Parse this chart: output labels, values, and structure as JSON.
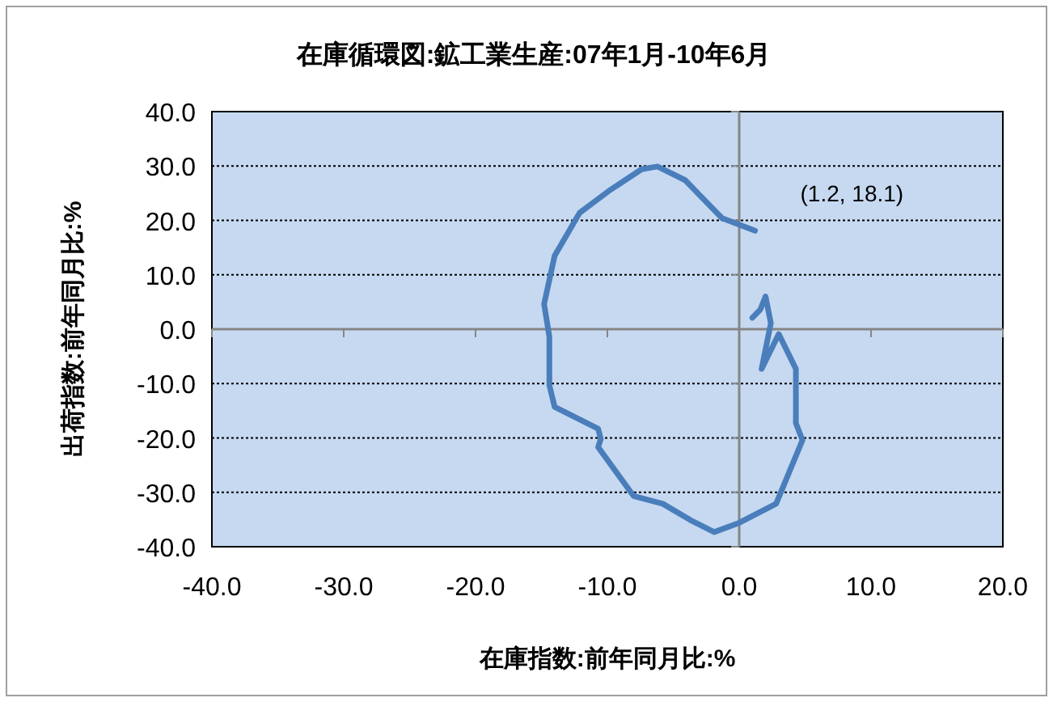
{
  "chart_data": {
    "type": "line",
    "title": "在庫循環図:鉱工業生産:07年1月-10年6月",
    "xlabel": "在庫指数:前年同月比:%",
    "ylabel": "出荷指数:前年同月比:%",
    "series": [
      {
        "color": "#4a7ebb",
        "x": [
          1.0,
          1.6,
          2.0,
          2.4,
          1.7,
          3.0,
          4.3,
          4.3,
          4.8,
          2.8,
          0.0,
          -1.9,
          -3.7,
          -5.8,
          -8.0,
          -10.7,
          -10.5,
          -10.7,
          -14.0,
          -14.4,
          -14.4,
          -14.8,
          -14.0,
          -12.1,
          -9.9,
          -7.4,
          -6.2,
          -4.1,
          -1.3,
          1.2
        ],
        "values": [
          2.1,
          3.6,
          6.0,
          1.1,
          -7.3,
          -0.9,
          -7.3,
          -17.3,
          -20.4,
          -32.1,
          -35.6,
          -37.3,
          -35.1,
          -32.1,
          -30.7,
          -21.7,
          -20.2,
          -18.3,
          -14.3,
          -10.3,
          -1.4,
          4.6,
          13.5,
          21.4,
          25.4,
          29.4,
          29.9,
          27.4,
          20.4,
          18.1
        ]
      }
    ],
    "xlim": [
      -40,
      20
    ],
    "ylim": [
      -40,
      40
    ],
    "xticks": [
      {
        "value": -40,
        "label": "-40.0"
      },
      {
        "value": -30,
        "label": "-30.0"
      },
      {
        "value": -20,
        "label": "-20.0"
      },
      {
        "value": -10,
        "label": "-10.0"
      },
      {
        "value": 0,
        "label": "0.0"
      },
      {
        "value": 10,
        "label": "10.0"
      },
      {
        "value": 20,
        "label": "20.0"
      }
    ],
    "yticks": [
      {
        "value": -40,
        "label": "-40.0"
      },
      {
        "value": -30,
        "label": "-30.0"
      },
      {
        "value": -20,
        "label": "-20.0"
      },
      {
        "value": -10,
        "label": "-10.0"
      },
      {
        "value": 0,
        "label": "0.0"
      },
      {
        "value": 10,
        "label": "10.0"
      },
      {
        "value": 20,
        "label": "20.0"
      },
      {
        "value": 30,
        "label": "30.0"
      },
      {
        "value": 40,
        "label": "40.0"
      }
    ],
    "grid": "y",
    "ref_lines": [
      {
        "axis": "x",
        "value": 0,
        "color": "#868686"
      }
    ],
    "annotations": [
      {
        "text": "(1.2, 18.1)",
        "x": 1.2,
        "y": 18.1
      }
    ]
  }
}
